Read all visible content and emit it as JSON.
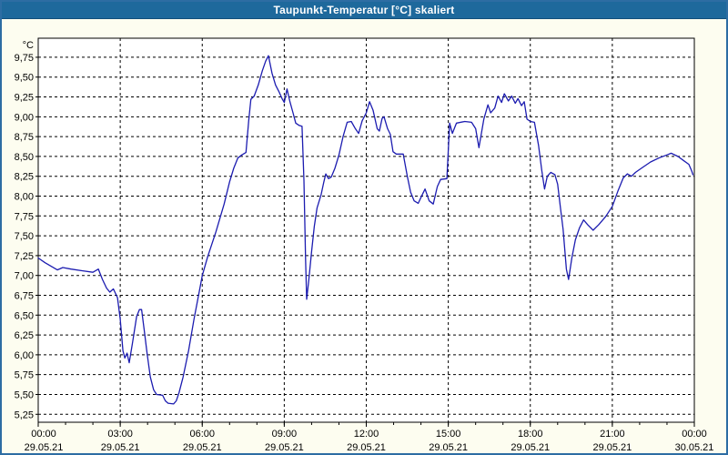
{
  "window": {
    "title": "Taupunkt-Temperatur [°C] skaliert"
  },
  "colors": {
    "titlebar_bg": "#1e699c",
    "titlebar_text": "#ffffff",
    "window_bg": "#fdfdf0",
    "window_border": "#2d6da3",
    "plot_bg": "#ffffff",
    "plot_border": "#000000",
    "grid": "#000000",
    "tick": "#000000",
    "label_text": "#000000",
    "series_line": "#1c1cb0"
  },
  "chart_data": {
    "type": "line",
    "title": "Taupunkt-Temperatur [°C] skaliert",
    "y_unit": "°C",
    "ylim": [
      5.15,
      9.99
    ],
    "xlim_hours": [
      0,
      24
    ],
    "grid": "dashed",
    "legend": "none",
    "x_minor_step_hours": 1,
    "y_ticks": [
      {
        "v": 5.25,
        "label": "5,25"
      },
      {
        "v": 5.5,
        "label": "5,50"
      },
      {
        "v": 5.75,
        "label": "5,75"
      },
      {
        "v": 6.0,
        "label": "6,00"
      },
      {
        "v": 6.25,
        "label": "6,25"
      },
      {
        "v": 6.5,
        "label": "6,50"
      },
      {
        "v": 6.75,
        "label": "6,75"
      },
      {
        "v": 7.0,
        "label": "7,00"
      },
      {
        "v": 7.25,
        "label": "7,25"
      },
      {
        "v": 7.5,
        "label": "7,50"
      },
      {
        "v": 7.75,
        "label": "7,75"
      },
      {
        "v": 8.0,
        "label": "8,00"
      },
      {
        "v": 8.25,
        "label": "8,25"
      },
      {
        "v": 8.5,
        "label": "8,50"
      },
      {
        "v": 8.75,
        "label": "8,75"
      },
      {
        "v": 9.0,
        "label": "9,00"
      },
      {
        "v": 9.25,
        "label": "9,25"
      },
      {
        "v": 9.5,
        "label": "9,50"
      },
      {
        "v": 9.75,
        "label": "9,75"
      }
    ],
    "x_ticks": [
      {
        "h": 0,
        "time": "00:00",
        "date": "29.05.21"
      },
      {
        "h": 3,
        "time": "03:00",
        "date": "29.05.21"
      },
      {
        "h": 6,
        "time": "06:00",
        "date": "29.05.21"
      },
      {
        "h": 9,
        "time": "09:00",
        "date": "29.05.21"
      },
      {
        "h": 12,
        "time": "12:00",
        "date": "29.05.21"
      },
      {
        "h": 15,
        "time": "15:00",
        "date": "29.05.21"
      },
      {
        "h": 18,
        "time": "18:00",
        "date": "29.05.21"
      },
      {
        "h": 21,
        "time": "21:00",
        "date": "29.05.21"
      },
      {
        "h": 24,
        "time": "00:00",
        "date": "30.05.21"
      }
    ],
    "series": [
      {
        "name": "Taupunkt-Temperatur",
        "points": [
          [
            0.0,
            7.22
          ],
          [
            0.25,
            7.16
          ],
          [
            0.5,
            7.11
          ],
          [
            0.7,
            7.07
          ],
          [
            0.9,
            7.1
          ],
          [
            1.2,
            7.08
          ],
          [
            1.6,
            7.06
          ],
          [
            2.0,
            7.04
          ],
          [
            2.2,
            7.08
          ],
          [
            2.35,
            6.95
          ],
          [
            2.5,
            6.84
          ],
          [
            2.62,
            6.79
          ],
          [
            2.75,
            6.83
          ],
          [
            2.9,
            6.72
          ],
          [
            3.0,
            6.45
          ],
          [
            3.1,
            6.05
          ],
          [
            3.17,
            5.96
          ],
          [
            3.25,
            6.02
          ],
          [
            3.33,
            5.9
          ],
          [
            3.45,
            6.15
          ],
          [
            3.6,
            6.48
          ],
          [
            3.7,
            6.57
          ],
          [
            3.78,
            6.57
          ],
          [
            3.88,
            6.3
          ],
          [
            3.98,
            6.02
          ],
          [
            4.1,
            5.72
          ],
          [
            4.22,
            5.56
          ],
          [
            4.33,
            5.5
          ],
          [
            4.55,
            5.49
          ],
          [
            4.65,
            5.42
          ],
          [
            4.75,
            5.39
          ],
          [
            4.95,
            5.38
          ],
          [
            5.05,
            5.42
          ],
          [
            5.15,
            5.52
          ],
          [
            5.3,
            5.72
          ],
          [
            5.5,
            6.05
          ],
          [
            5.7,
            6.45
          ],
          [
            5.85,
            6.72
          ],
          [
            6.0,
            7.0
          ],
          [
            6.2,
            7.24
          ],
          [
            6.5,
            7.55
          ],
          [
            6.8,
            7.9
          ],
          [
            7.0,
            8.18
          ],
          [
            7.15,
            8.35
          ],
          [
            7.3,
            8.48
          ],
          [
            7.45,
            8.52
          ],
          [
            7.6,
            8.55
          ],
          [
            7.7,
            8.95
          ],
          [
            7.78,
            9.22
          ],
          [
            7.9,
            9.26
          ],
          [
            8.05,
            9.4
          ],
          [
            8.2,
            9.58
          ],
          [
            8.32,
            9.7
          ],
          [
            8.42,
            9.77
          ],
          [
            8.55,
            9.55
          ],
          [
            8.68,
            9.4
          ],
          [
            8.8,
            9.32
          ],
          [
            8.93,
            9.22
          ],
          [
            9.0,
            9.18
          ],
          [
            9.1,
            9.35
          ],
          [
            9.2,
            9.2
          ],
          [
            9.32,
            9.05
          ],
          [
            9.42,
            8.92
          ],
          [
            9.55,
            8.89
          ],
          [
            9.65,
            8.88
          ],
          [
            9.72,
            8.2
          ],
          [
            9.78,
            7.2
          ],
          [
            9.82,
            6.7
          ],
          [
            9.9,
            6.95
          ],
          [
            10.0,
            7.3
          ],
          [
            10.1,
            7.62
          ],
          [
            10.2,
            7.85
          ],
          [
            10.35,
            8.02
          ],
          [
            10.45,
            8.18
          ],
          [
            10.52,
            8.28
          ],
          [
            10.62,
            8.22
          ],
          [
            10.72,
            8.24
          ],
          [
            10.85,
            8.35
          ],
          [
            11.0,
            8.52
          ],
          [
            11.15,
            8.75
          ],
          [
            11.3,
            8.93
          ],
          [
            11.45,
            8.94
          ],
          [
            11.6,
            8.85
          ],
          [
            11.72,
            8.79
          ],
          [
            11.85,
            8.95
          ],
          [
            12.0,
            9.05
          ],
          [
            12.12,
            9.19
          ],
          [
            12.25,
            9.08
          ],
          [
            12.4,
            8.85
          ],
          [
            12.48,
            8.82
          ],
          [
            12.58,
            8.98
          ],
          [
            12.65,
            9.0
          ],
          [
            12.78,
            8.85
          ],
          [
            12.88,
            8.78
          ],
          [
            12.98,
            8.56
          ],
          [
            13.1,
            8.53
          ],
          [
            13.35,
            8.53
          ],
          [
            13.5,
            8.25
          ],
          [
            13.62,
            8.05
          ],
          [
            13.75,
            7.94
          ],
          [
            13.9,
            7.91
          ],
          [
            14.05,
            8.02
          ],
          [
            14.15,
            8.09
          ],
          [
            14.3,
            7.94
          ],
          [
            14.45,
            7.9
          ],
          [
            14.6,
            8.12
          ],
          [
            14.72,
            8.21
          ],
          [
            14.95,
            8.22
          ],
          [
            15.05,
            8.92
          ],
          [
            15.15,
            8.79
          ],
          [
            15.3,
            8.92
          ],
          [
            15.6,
            8.94
          ],
          [
            15.85,
            8.93
          ],
          [
            16.0,
            8.85
          ],
          [
            16.12,
            8.61
          ],
          [
            16.3,
            8.97
          ],
          [
            16.45,
            9.15
          ],
          [
            16.55,
            9.05
          ],
          [
            16.7,
            9.11
          ],
          [
            16.82,
            9.26
          ],
          [
            16.95,
            9.18
          ],
          [
            17.05,
            9.29
          ],
          [
            17.2,
            9.2
          ],
          [
            17.32,
            9.26
          ],
          [
            17.45,
            9.17
          ],
          [
            17.55,
            9.23
          ],
          [
            17.68,
            9.14
          ],
          [
            17.78,
            9.19
          ],
          [
            17.88,
            8.97
          ],
          [
            18.0,
            8.94
          ],
          [
            18.15,
            8.93
          ],
          [
            18.3,
            8.64
          ],
          [
            18.42,
            8.32
          ],
          [
            18.52,
            8.09
          ],
          [
            18.62,
            8.25
          ],
          [
            18.75,
            8.3
          ],
          [
            18.9,
            8.27
          ],
          [
            19.0,
            8.15
          ],
          [
            19.1,
            7.86
          ],
          [
            19.2,
            7.58
          ],
          [
            19.32,
            7.08
          ],
          [
            19.4,
            6.95
          ],
          [
            19.52,
            7.22
          ],
          [
            19.65,
            7.45
          ],
          [
            19.8,
            7.6
          ],
          [
            19.95,
            7.7
          ],
          [
            20.1,
            7.64
          ],
          [
            20.3,
            7.57
          ],
          [
            20.5,
            7.64
          ],
          [
            20.75,
            7.74
          ],
          [
            21.0,
            7.87
          ],
          [
            21.2,
            8.06
          ],
          [
            21.4,
            8.23
          ],
          [
            21.55,
            8.28
          ],
          [
            21.7,
            8.25
          ],
          [
            21.85,
            8.3
          ],
          [
            22.1,
            8.36
          ],
          [
            22.4,
            8.43
          ],
          [
            22.7,
            8.48
          ],
          [
            23.0,
            8.52
          ],
          [
            23.15,
            8.54
          ],
          [
            23.4,
            8.5
          ],
          [
            23.6,
            8.45
          ],
          [
            23.8,
            8.4
          ],
          [
            23.9,
            8.32
          ],
          [
            23.95,
            8.27
          ]
        ]
      }
    ]
  }
}
